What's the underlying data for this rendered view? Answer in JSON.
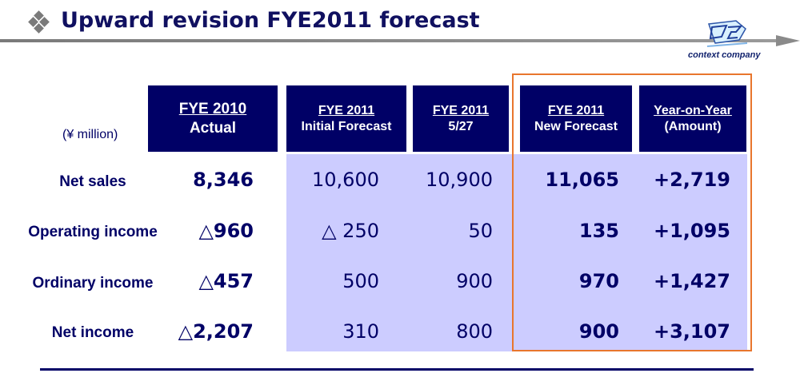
{
  "title": "Upward revision FYE2011 forecast",
  "logo": {
    "text": "context company",
    "icon": "context-company-logo"
  },
  "unit_label": "(¥ million)",
  "columns": [
    {
      "line1": "FYE 2010",
      "line2": "Actual"
    },
    {
      "line1": "FYE 2011",
      "line2": "Initial Forecast"
    },
    {
      "line1": "FYE 2011",
      "line2": "5/27"
    },
    {
      "line1": "FYE 2011",
      "line2": "New Forecast"
    },
    {
      "line1": "Year-on-Year",
      "line2": "(Amount)"
    }
  ],
  "rows": [
    {
      "label": "Net sales",
      "values": [
        "8,346",
        "10,600",
        "10,900",
        "11,065",
        "+2,719"
      ]
    },
    {
      "label": "Operating income",
      "values": [
        "△960",
        "△ 250",
        "50",
        "135",
        "+1,095"
      ]
    },
    {
      "label": "Ordinary income",
      "values": [
        "△457",
        "500",
        "900",
        "970",
        "+1,427"
      ]
    },
    {
      "label": "Net income",
      "values": [
        "△2,207",
        "310",
        "800",
        "900",
        "+3,107"
      ]
    }
  ],
  "colors": {
    "navy": "#000066",
    "light_panel": "#ccccff",
    "highlight_border": "#e8762d"
  }
}
